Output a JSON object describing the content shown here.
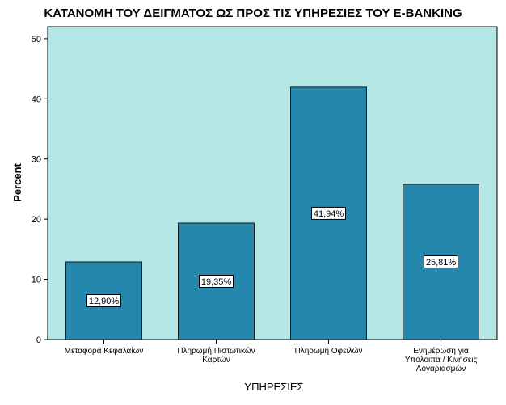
{
  "chart_data": {
    "type": "bar",
    "title": "ΚΑΤΑΝΟΜΗ ΤΟΥ ΔΕΙΓΜΑΤΟΣ ΩΣ ΠΡΟΣ ΤΙΣ ΥΠΗΡΕΣΙΕΣ ΤΟΥ E-BANKING",
    "xlabel": "ΥΠΗΡΕΣΙΕΣ",
    "ylabel": "Percent",
    "categories": [
      "Μεταφορά Κεφαλαίων",
      "Πληρωμή Πιστωτικών Καρτών",
      "Πληρωμή Οφειλών",
      "Ενημέρωση για Υπόλοιπα / Κινήσεις Λογαριασμών"
    ],
    "category_lines": [
      [
        "Μεταφορά Κεφαλαίων"
      ],
      [
        "Πληρωμή Πιστωτικών",
        "Καρτών"
      ],
      [
        "Πληρωμή Οφειλών"
      ],
      [
        "Ενημέρωση για",
        "Υπόλοιπα / Κινήσεις",
        "Λογαριασμών"
      ]
    ],
    "values": [
      12.9,
      19.35,
      41.94,
      25.81
    ],
    "data_labels": [
      "12,90%",
      "19,35%",
      "41,94%",
      "25,81%"
    ],
    "ylim": [
      0,
      52
    ],
    "yticks": [
      0,
      10,
      20,
      30,
      40,
      50
    ],
    "grid": false,
    "colors": {
      "plot_background": "#b4e6e6",
      "bar_fill": "#2587ab",
      "bar_stroke": "#1a1a1a"
    }
  }
}
